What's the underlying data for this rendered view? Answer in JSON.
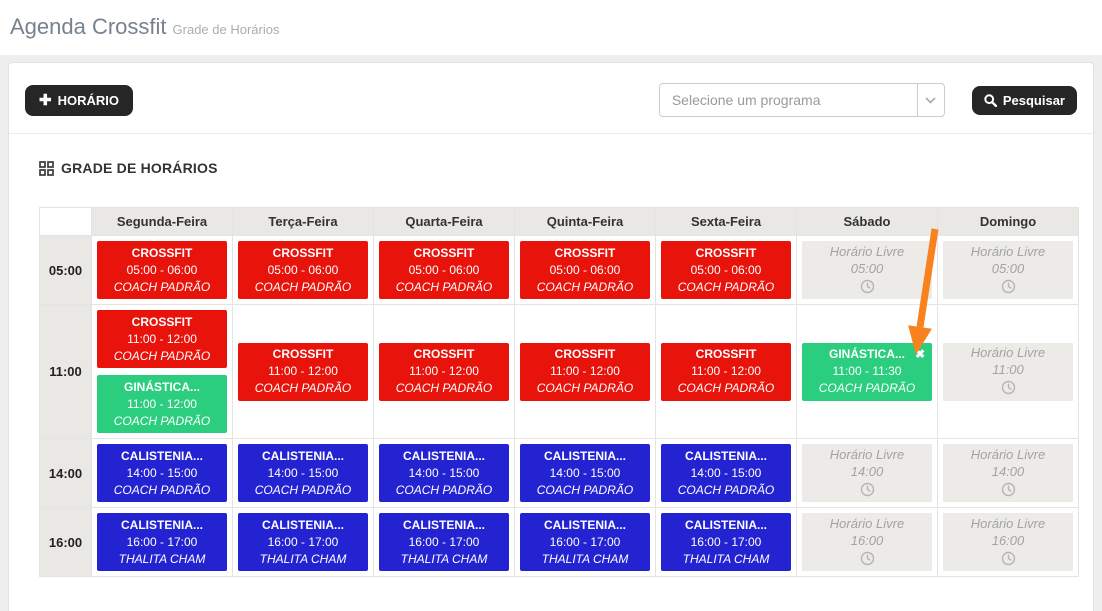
{
  "page": {
    "title": "Agenda Crossfit",
    "subtitle": "Grade de Horários"
  },
  "toolbar": {
    "add_button": "HORÁRIO",
    "select_placeholder": "Selecione um programa",
    "search_button": "Pesquisar"
  },
  "section": {
    "heading": "GRADE DE HORÁRIOS"
  },
  "colors": {
    "red": "#e8130b",
    "green": "#2bcd7e",
    "blue": "#2323d2",
    "free_bg": "#ecebe7",
    "arrow": "#f8821e",
    "dark_button": "#262626"
  },
  "schedule": {
    "free_label": "Horário Livre",
    "days": [
      "Segunda-Feira",
      "Terça-Feira",
      "Quarta-Feira",
      "Quinta-Feira",
      "Sexta-Feira",
      "Sábado",
      "Domingo"
    ],
    "rows": [
      {
        "time": "05:00",
        "cells": [
          {
            "type": "class",
            "color": "red",
            "title": "CROSSFIT",
            "period": "05:00 - 06:00",
            "coach": "COACH PADRÃO"
          },
          {
            "type": "class",
            "color": "red",
            "title": "CROSSFIT",
            "period": "05:00 - 06:00",
            "coach": "COACH PADRÃO"
          },
          {
            "type": "class",
            "color": "red",
            "title": "CROSSFIT",
            "period": "05:00 - 06:00",
            "coach": "COACH PADRÃO"
          },
          {
            "type": "class",
            "color": "red",
            "title": "CROSSFIT",
            "period": "05:00 - 06:00",
            "coach": "COACH PADRÃO"
          },
          {
            "type": "class",
            "color": "red",
            "title": "CROSSFIT",
            "period": "05:00 - 06:00",
            "coach": "COACH PADRÃO"
          },
          {
            "type": "free",
            "period": "05:00"
          },
          {
            "type": "free",
            "period": "05:00"
          }
        ]
      },
      {
        "time": "11:00",
        "cells": [
          {
            "type": "stack",
            "blocks": [
              {
                "color": "red",
                "title": "CROSSFIT",
                "period": "11:00 - 12:00",
                "coach": "COACH PADRÃO"
              },
              {
                "color": "green",
                "title": "GINÁSTICA...",
                "period": "11:00 - 12:00",
                "coach": "COACH PADRÃO"
              }
            ]
          },
          {
            "type": "class",
            "color": "red",
            "title": "CROSSFIT",
            "period": "11:00 - 12:00",
            "coach": "COACH PADRÃO"
          },
          {
            "type": "class",
            "color": "red",
            "title": "CROSSFIT",
            "period": "11:00 - 12:00",
            "coach": "COACH PADRÃO"
          },
          {
            "type": "class",
            "color": "red",
            "title": "CROSSFIT",
            "period": "11:00 - 12:00",
            "coach": "COACH PADRÃO"
          },
          {
            "type": "class",
            "color": "red",
            "title": "CROSSFIT",
            "period": "11:00 - 12:00",
            "coach": "COACH PADRÃO"
          },
          {
            "type": "class",
            "color": "green",
            "title": "GINÁSTICA...",
            "period": "11:00 - 11:30",
            "coach": "COACH PADRÃO",
            "closable": true
          },
          {
            "type": "free",
            "period": "11:00"
          }
        ]
      },
      {
        "time": "14:00",
        "cells": [
          {
            "type": "class",
            "color": "blue",
            "title": "CALISTENIA...",
            "period": "14:00 - 15:00",
            "coach": "COACH PADRÃO"
          },
          {
            "type": "class",
            "color": "blue",
            "title": "CALISTENIA...",
            "period": "14:00 - 15:00",
            "coach": "COACH PADRÃO"
          },
          {
            "type": "class",
            "color": "blue",
            "title": "CALISTENIA...",
            "period": "14:00 - 15:00",
            "coach": "COACH PADRÃO"
          },
          {
            "type": "class",
            "color": "blue",
            "title": "CALISTENIA...",
            "period": "14:00 - 15:00",
            "coach": "COACH PADRÃO"
          },
          {
            "type": "class",
            "color": "blue",
            "title": "CALISTENIA...",
            "period": "14:00 - 15:00",
            "coach": "COACH PADRÃO"
          },
          {
            "type": "free",
            "period": "14:00"
          },
          {
            "type": "free",
            "period": "14:00"
          }
        ]
      },
      {
        "time": "16:00",
        "cells": [
          {
            "type": "class",
            "color": "blue",
            "title": "CALISTENIA...",
            "period": "16:00 - 17:00",
            "coach": "THALITA CHAM"
          },
          {
            "type": "class",
            "color": "blue",
            "title": "CALISTENIA...",
            "period": "16:00 - 17:00",
            "coach": "THALITA CHAM"
          },
          {
            "type": "class",
            "color": "blue",
            "title": "CALISTENIA...",
            "period": "16:00 - 17:00",
            "coach": "THALITA CHAM"
          },
          {
            "type": "class",
            "color": "blue",
            "title": "CALISTENIA...",
            "period": "16:00 - 17:00",
            "coach": "THALITA CHAM"
          },
          {
            "type": "class",
            "color": "blue",
            "title": "CALISTENIA...",
            "period": "16:00 - 17:00",
            "coach": "THALITA CHAM"
          },
          {
            "type": "free",
            "period": "16:00"
          },
          {
            "type": "free",
            "period": "16:00"
          }
        ]
      }
    ]
  }
}
